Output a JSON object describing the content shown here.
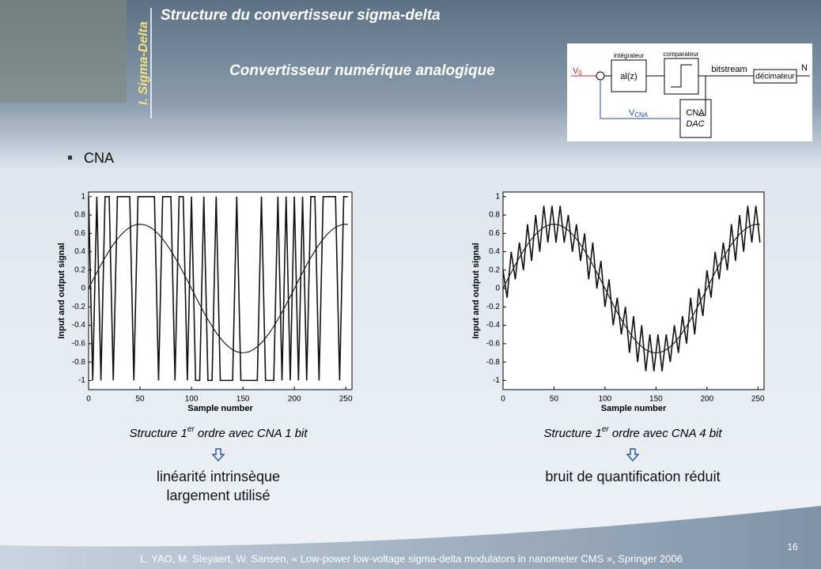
{
  "header": {
    "title": "Structure du convertisseur sigma-delta",
    "subtitle": "Convertisseur numérique analogique",
    "section": "I. Sigma-Delta"
  },
  "diagram": {
    "input": "V",
    "input_sub": "0",
    "integrator_label": "intégrateur",
    "integrator": "al(z)",
    "comparator_label": "comparateur",
    "bitstream": "bitstream",
    "decimator": "décimateur",
    "output": "N",
    "feedback": "V",
    "feedback_sub": "CNA",
    "dac_top": "CNA",
    "dac_bottom": "DAC"
  },
  "bullet": "CNA",
  "chart_data": [
    {
      "type": "line",
      "xlabel": "Sample number",
      "ylabel": "Input and output signal",
      "x": [
        0,
        4,
        8,
        12,
        16,
        20,
        24,
        28,
        32,
        36,
        40,
        44,
        48,
        52,
        56,
        60,
        64,
        68,
        72,
        76,
        80,
        84,
        88,
        92,
        96,
        100,
        104,
        108,
        112,
        116,
        120,
        124,
        128,
        132,
        136,
        140,
        144,
        148,
        152,
        156,
        160,
        164,
        168,
        172,
        176,
        180,
        184,
        188,
        192,
        196,
        200,
        204,
        208,
        212,
        216,
        220,
        224,
        228,
        232,
        236,
        240,
        244,
        248,
        252
      ],
      "series": [
        {
          "color": "#111111",
          "values": [
            1,
            -1,
            1,
            -1,
            1,
            1,
            -1,
            1,
            1,
            1,
            1,
            -1,
            1,
            1,
            1,
            1,
            1,
            -1,
            1,
            1,
            1,
            -1,
            1,
            1,
            -1,
            1,
            -1,
            -1,
            1,
            -1,
            -1,
            1,
            -1,
            -1,
            -1,
            -1,
            1,
            -1,
            -1,
            -1,
            -1,
            -1,
            1,
            -1,
            -1,
            -1,
            1,
            -1,
            1,
            -1,
            1,
            -1,
            1,
            -1,
            1,
            1,
            -1,
            1,
            1,
            1,
            1,
            -1,
            1,
            1
          ]
        },
        {
          "color": "#111111",
          "values": [
            0,
            0.088,
            0.174,
            0.258,
            0.337,
            0.411,
            0.479,
            0.539,
            0.591,
            0.633,
            0.666,
            0.688,
            0.699,
            0.698,
            0.688,
            0.666,
            0.633,
            0.591,
            0.539,
            0.479,
            0.411,
            0.337,
            0.258,
            0.174,
            0.088,
            0,
            -0.088,
            -0.174,
            -0.258,
            -0.337,
            -0.411,
            -0.479,
            -0.539,
            -0.591,
            -0.633,
            -0.666,
            -0.688,
            -0.699,
            -0.698,
            -0.688,
            -0.666,
            -0.633,
            -0.591,
            -0.539,
            -0.479,
            -0.411,
            -0.337,
            -0.258,
            -0.174,
            -0.088,
            0,
            0.088,
            0.174,
            0.258,
            0.337,
            0.411,
            0.479,
            0.539,
            0.591,
            0.633,
            0.666,
            0.688,
            0.699,
            0.698
          ]
        }
      ],
      "xlim": [
        0,
        256
      ],
      "ylim": [
        -1.1,
        1.05
      ],
      "xticks": [
        0,
        50,
        100,
        150,
        200,
        250
      ],
      "yticks": [
        -1,
        -0.8,
        -0.6,
        -0.4,
        -0.2,
        0,
        0.2,
        0.4,
        0.6,
        0.8,
        1
      ]
    },
    {
      "type": "line",
      "xlabel": "Sample number",
      "ylabel": "Input and output signal",
      "x": [
        0,
        4,
        8,
        12,
        16,
        20,
        24,
        28,
        32,
        36,
        40,
        44,
        48,
        52,
        56,
        60,
        64,
        68,
        72,
        76,
        80,
        84,
        88,
        92,
        96,
        100,
        104,
        108,
        112,
        116,
        120,
        124,
        128,
        132,
        136,
        140,
        144,
        148,
        152,
        156,
        160,
        164,
        168,
        172,
        176,
        180,
        184,
        188,
        192,
        196,
        200,
        204,
        208,
        212,
        216,
        220,
        224,
        228,
        232,
        236,
        240,
        244,
        248,
        252
      ],
      "series": [
        {
          "color": "#111111",
          "values": [
            0.2,
            -0.1,
            0.4,
            0.1,
            0.5,
            0.2,
            0.7,
            0.3,
            0.8,
            0.4,
            0.9,
            0.5,
            0.9,
            0.5,
            0.9,
            0.5,
            0.8,
            0.4,
            0.7,
            0.3,
            0.6,
            0.1,
            0.5,
            0,
            0.3,
            -0.2,
            0.1,
            -0.4,
            -0.1,
            -0.5,
            -0.2,
            -0.7,
            -0.3,
            -0.8,
            -0.4,
            -0.9,
            -0.5,
            -0.9,
            -0.5,
            -0.9,
            -0.5,
            -0.8,
            -0.4,
            -0.7,
            -0.3,
            -0.6,
            -0.1,
            -0.5,
            0,
            -0.3,
            0.2,
            -0.1,
            0.4,
            0.1,
            0.5,
            0.2,
            0.7,
            0.3,
            0.8,
            0.4,
            0.9,
            0.5,
            0.9,
            0.5
          ]
        },
        {
          "color": "#111111",
          "values": [
            0,
            0.088,
            0.174,
            0.258,
            0.337,
            0.411,
            0.479,
            0.539,
            0.591,
            0.633,
            0.666,
            0.688,
            0.699,
            0.698,
            0.688,
            0.666,
            0.633,
            0.591,
            0.539,
            0.479,
            0.411,
            0.337,
            0.258,
            0.174,
            0.088,
            0,
            -0.088,
            -0.174,
            -0.258,
            -0.337,
            -0.411,
            -0.479,
            -0.539,
            -0.591,
            -0.633,
            -0.666,
            -0.688,
            -0.699,
            -0.698,
            -0.688,
            -0.666,
            -0.633,
            -0.591,
            -0.539,
            -0.479,
            -0.411,
            -0.337,
            -0.258,
            -0.174,
            -0.088,
            0,
            0.088,
            0.174,
            0.258,
            0.337,
            0.411,
            0.479,
            0.539,
            0.591,
            0.633,
            0.666,
            0.688,
            0.699,
            0.698
          ]
        }
      ],
      "xlim": [
        0,
        256
      ],
      "ylim": [
        -1.1,
        1.05
      ],
      "xticks": [
        0,
        50,
        100,
        150,
        200,
        250
      ],
      "yticks": [
        -1,
        -0.8,
        -0.6,
        -0.4,
        -0.2,
        0,
        0.2,
        0.4,
        0.6,
        0.8,
        1
      ]
    }
  ],
  "captions": [
    {
      "pre": "Structure 1",
      "sup": "er",
      "post": " ordre avec CNA 1 bit",
      "lines": [
        "linéarité intrinsèque",
        "largement utilisé"
      ]
    },
    {
      "pre": "Structure 1",
      "sup": "er",
      "post": " ordre avec CNA 4 bit",
      "lines": [
        "bruit de quantification réduit"
      ]
    }
  ],
  "footer": "L. YAO, M. Steyaert, W. Sansen, « Low-power low-voltage sigma-delta modulators in nanometer CMS », Springer 2006",
  "page_number": "16"
}
